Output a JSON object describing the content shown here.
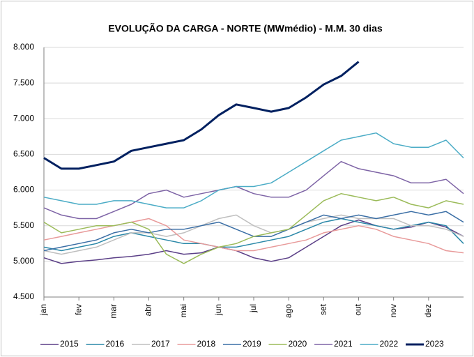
{
  "chart_data": {
    "type": "line",
    "title": "EVOLUÇÃO DA CARGA - NORTE (MWmédio) - M.M. 30 dias",
    "categories": [
      "jan",
      null,
      "fev",
      null,
      "mar",
      null,
      "abr",
      null,
      "mai",
      null,
      "jun",
      null,
      "jul",
      null,
      "ago",
      null,
      "set",
      null,
      "out",
      null,
      "nov",
      null,
      "dez",
      null,
      null
    ],
    "ylim": [
      4500,
      8000
    ],
    "yticks": [
      {
        "value": 4500,
        "label": "4.500"
      },
      {
        "value": 5000,
        "label": "5.000"
      },
      {
        "value": 5500,
        "label": "5.500"
      },
      {
        "value": 6000,
        "label": "6.000"
      },
      {
        "value": 6500,
        "label": "6.500"
      },
      {
        "value": 7000,
        "label": "7.000"
      },
      {
        "value": 7500,
        "label": "7.500"
      },
      {
        "value": 8000,
        "label": "8.000"
      }
    ],
    "grid": true,
    "legend": "bottom",
    "series": [
      {
        "name": "2015",
        "color": "#5b3f87",
        "width": 1.5,
        "values": [
          5050,
          4970,
          5000,
          5020,
          5050,
          5070,
          5100,
          5150,
          5100,
          5120,
          5200,
          5150,
          5050,
          5000,
          5050,
          5200,
          5350,
          5500,
          5580,
          5500,
          5450,
          5480,
          5550,
          5480,
          5350
        ]
      },
      {
        "name": "2016",
        "color": "#2a88a8",
        "width": 1.5,
        "values": [
          5200,
          5150,
          5200,
          5250,
          5350,
          5400,
          5350,
          5300,
          5250,
          5250,
          5200,
          5200,
          5250,
          5300,
          5350,
          5450,
          5550,
          5600,
          5550,
          5500,
          5450,
          5500,
          5550,
          5500,
          5250
        ]
      },
      {
        "name": "2017",
        "color": "#bfbfbf",
        "width": 1.5,
        "values": [
          5150,
          5100,
          5150,
          5200,
          5300,
          5400,
          5400,
          5350,
          5400,
          5500,
          5600,
          5650,
          5500,
          5400,
          5450,
          5550,
          5600,
          5650,
          5600,
          5600,
          5600,
          5500,
          5500,
          5450,
          5350
        ]
      },
      {
        "name": "2018",
        "color": "#e89a9a",
        "width": 1.5,
        "values": [
          5300,
          5350,
          5400,
          5450,
          5500,
          5550,
          5600,
          5500,
          5300,
          5250,
          5200,
          5150,
          5150,
          5200,
          5250,
          5300,
          5400,
          5450,
          5500,
          5450,
          5350,
          5300,
          5250,
          5150,
          5120
        ]
      },
      {
        "name": "2019",
        "color": "#3a6ea5",
        "width": 1.5,
        "values": [
          5150,
          5200,
          5250,
          5300,
          5400,
          5450,
          5400,
          5450,
          5450,
          5500,
          5550,
          5450,
          5350,
          5350,
          5450,
          5550,
          5650,
          5600,
          5650,
          5600,
          5650,
          5700,
          5650,
          5700,
          5550
        ]
      },
      {
        "name": "2020",
        "color": "#9bbb59",
        "width": 1.5,
        "values": [
          5550,
          5400,
          5450,
          5500,
          5500,
          5550,
          5450,
          5100,
          4970,
          5100,
          5200,
          5250,
          5350,
          5400,
          5450,
          5650,
          5850,
          5950,
          5900,
          5850,
          5900,
          5800,
          5750,
          5850,
          5800
        ]
      },
      {
        "name": "2021",
        "color": "#7e64a6",
        "width": 1.5,
        "values": [
          5750,
          5650,
          5600,
          5600,
          5700,
          5800,
          5950,
          6000,
          5900,
          5950,
          6000,
          6050,
          5950,
          5900,
          5900,
          6000,
          6200,
          6400,
          6300,
          6250,
          6200,
          6100,
          6100,
          6150,
          5950
        ]
      },
      {
        "name": "2022",
        "color": "#4bacc6",
        "width": 1.5,
        "values": [
          5900,
          5850,
          5800,
          5800,
          5850,
          5850,
          5800,
          5750,
          5750,
          5850,
          6000,
          6050,
          6050,
          6100,
          6250,
          6400,
          6550,
          6700,
          6750,
          6800,
          6650,
          6600,
          6600,
          6700,
          6450
        ]
      },
      {
        "name": "2023",
        "color": "#002060",
        "width": 3,
        "values": [
          6450,
          6300,
          6300,
          6350,
          6400,
          6550,
          6600,
          6650,
          6700,
          6850,
          7050,
          7200,
          7150,
          7100,
          7150,
          7300,
          7480,
          7600,
          7800,
          null,
          null,
          null,
          null,
          null,
          null
        ]
      }
    ]
  }
}
